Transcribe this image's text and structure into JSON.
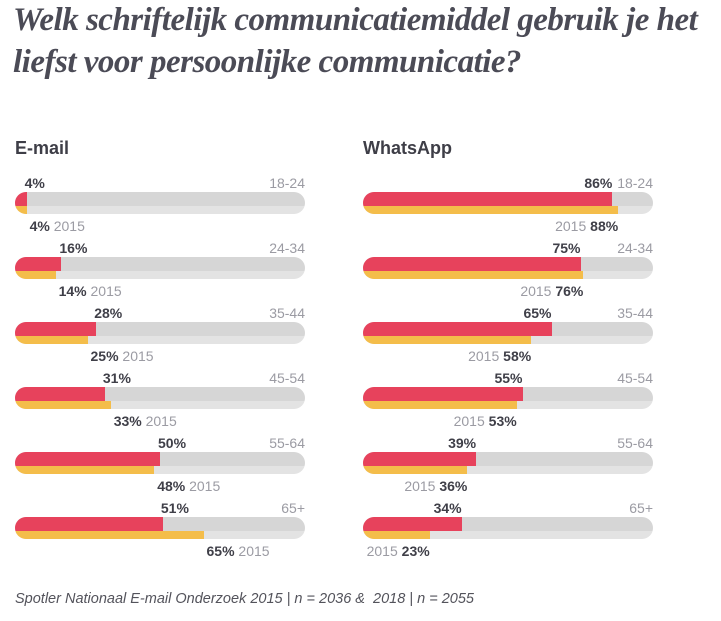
{
  "title": "Welk schriftelijk communicatiemiddel gebruik je het liefst voor persoonlijke communicatie?",
  "footnote": "Spotler Nationaal E-mail Onderzoek 2015 | n = 2036 &  2018 | n = 2055",
  "colors": {
    "bar_current": "#e7425c",
    "bar_2015": "#f4bd4a",
    "track_top": "#d6d6d6",
    "track_bottom": "#e3e3e3",
    "text_dark": "#3f3f48",
    "text_gray": "#9b9ba3",
    "title_color": "#4b4b56"
  },
  "chart_data": {
    "type": "bar",
    "title": "Welk schriftelijk communicatiemiddel gebruik je het liefst voor persoonlijke communicatie?",
    "categories": [
      "18-24",
      "24-34",
      "35-44",
      "45-54",
      "55-64",
      "65+"
    ],
    "unit": "%",
    "xlim": [
      0,
      100
    ],
    "grid": false,
    "legend_position": "none",
    "groups": [
      {
        "name": "E-mail",
        "label_align": "left",
        "year_order": "value-first",
        "series": [
          {
            "name": "2018",
            "values": [
              4,
              16,
              28,
              31,
              50,
              51
            ]
          },
          {
            "name": "2015",
            "values": [
              4,
              14,
              25,
              33,
              48,
              65
            ]
          }
        ]
      },
      {
        "name": "WhatsApp",
        "label_align": "right",
        "year_order": "year-first",
        "series": [
          {
            "name": "2018",
            "values": [
              86,
              75,
              65,
              55,
              39,
              34
            ]
          },
          {
            "name": "2015",
            "values": [
              88,
              76,
              58,
              53,
              36,
              23
            ]
          }
        ]
      }
    ],
    "footnote": "Spotler Nationaal E-mail Onderzoek 2015 | n = 2036 &  2018 | n = 2055"
  }
}
